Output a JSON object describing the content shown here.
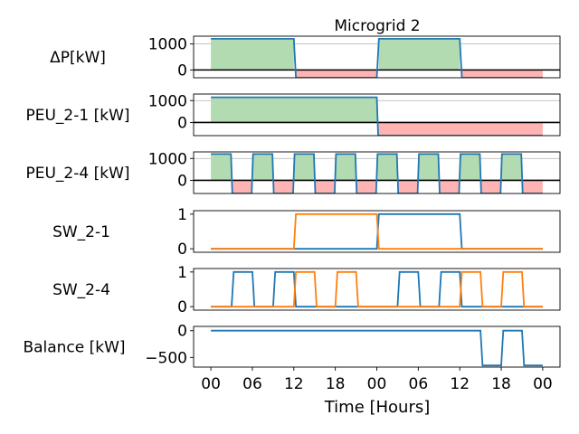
{
  "figure": {
    "title": "Microgrid 2",
    "xlabel": "Time [Hours]"
  },
  "colors": {
    "series_blue": "#1f77b4",
    "series_orange": "#ff7f0e",
    "positive_fill": "#b2dbb2",
    "negative_fill": "#ffb3b3",
    "grid": "#b0b0b0",
    "zero_line": "#000000"
  },
  "chart_data": [
    {
      "type": "line",
      "ylabel": "ΔP[kW]",
      "ylim": [
        -300,
        1300
      ],
      "yticks": [
        0,
        1000
      ],
      "ytick_labels": [
        "0",
        "1000"
      ],
      "grid": true,
      "zero_line": true,
      "fill_sign": true,
      "xlim": [
        -2.5,
        50.5
      ],
      "series": [
        {
          "color": "blue",
          "x": [
            0,
            12,
            12.3,
            24,
            24.3,
            36,
            36.3,
            48
          ],
          "y": [
            1200,
            1200,
            -300,
            -300,
            1200,
            1200,
            -300,
            -300
          ]
        }
      ]
    },
    {
      "type": "line",
      "ylabel": "PEU_2-1 [kW]",
      "ylim": [
        -600,
        1300
      ],
      "yticks": [
        0,
        1000
      ],
      "ytick_labels": [
        "0",
        "1000"
      ],
      "grid": true,
      "zero_line": true,
      "fill_sign": true,
      "xlim": [
        -2.5,
        50.5
      ],
      "series": [
        {
          "color": "blue",
          "x": [
            0,
            24,
            24.2,
            48
          ],
          "y": [
            1150,
            1150,
            -600,
            -600
          ]
        }
      ]
    },
    {
      "type": "line",
      "ylabel": "PEU_2-4 [kW]",
      "ylim": [
        -600,
        1300
      ],
      "yticks": [
        0,
        1000
      ],
      "ytick_labels": [
        "0",
        "1000"
      ],
      "grid": true,
      "zero_line": true,
      "fill_sign": true,
      "xlim": [
        -2.5,
        50.5
      ],
      "series": [
        {
          "color": "blue",
          "x": [
            0,
            2.9,
            3.1,
            5.9,
            6.1,
            8.9,
            9.1,
            11.9,
            12.1,
            14.9,
            15.1,
            17.9,
            18.1,
            20.9,
            21.1,
            23.9,
            24.1,
            26.9,
            27.1,
            29.9,
            30.1,
            32.9,
            33.1,
            35.9,
            36.1,
            38.9,
            39.1,
            41.9,
            42.1,
            44.9,
            45.1,
            48
          ],
          "y": [
            1200,
            1200,
            -600,
            -600,
            1200,
            1200,
            -600,
            -600,
            1200,
            1200,
            -600,
            -600,
            1200,
            1200,
            -600,
            -600,
            1200,
            1200,
            -600,
            -600,
            1200,
            1200,
            -600,
            -600,
            1200,
            1200,
            -600,
            -600,
            1200,
            1200,
            -600,
            -600
          ]
        }
      ]
    },
    {
      "type": "line",
      "ylabel": "SW_2-1",
      "ylim": [
        -0.1,
        1.1
      ],
      "yticks": [
        0,
        1
      ],
      "ytick_labels": [
        "0",
        "1"
      ],
      "grid": false,
      "zero_line": false,
      "fill_sign": false,
      "xlim": [
        -2.5,
        50.5
      ],
      "series": [
        {
          "color": "blue",
          "x": [
            0,
            24,
            24.3,
            36,
            36.3,
            48
          ],
          "y": [
            0,
            0,
            1,
            1,
            0,
            0
          ]
        },
        {
          "color": "orange",
          "x": [
            0,
            12,
            12.3,
            24,
            24.3,
            48
          ],
          "y": [
            0,
            0,
            1,
            1,
            0,
            0
          ]
        }
      ]
    },
    {
      "type": "line",
      "ylabel": "SW_2-4",
      "ylim": [
        -0.1,
        1.1
      ],
      "yticks": [
        0,
        1
      ],
      "ytick_labels": [
        "0",
        "1"
      ],
      "grid": false,
      "zero_line": false,
      "fill_sign": false,
      "xlim": [
        -2.5,
        50.5
      ],
      "series": [
        {
          "color": "blue",
          "x": [
            0,
            3,
            3.3,
            6,
            6.3,
            9,
            9.3,
            12,
            12.3,
            27,
            27.3,
            30,
            30.3,
            33,
            33.3,
            36,
            36.3,
            48
          ],
          "y": [
            0,
            0,
            1,
            1,
            0,
            0,
            1,
            1,
            0,
            0,
            1,
            1,
            0,
            0,
            1,
            1,
            0,
            0
          ]
        },
        {
          "color": "orange",
          "x": [
            0,
            12,
            12.3,
            15,
            15.3,
            18,
            18.3,
            21,
            21.3,
            36,
            36.3,
            39,
            39.3,
            42,
            42.3,
            45,
            45.3,
            48
          ],
          "y": [
            0,
            0,
            1,
            1,
            0,
            0,
            1,
            1,
            0,
            0,
            1,
            1,
            0,
            0,
            1,
            1,
            0,
            0
          ]
        }
      ]
    },
    {
      "type": "line",
      "ylabel": "Balance [kW]",
      "ylim": [
        -680,
        80
      ],
      "yticks": [
        0,
        -500
      ],
      "ytick_labels": [
        "0",
        "−500"
      ],
      "grid": false,
      "zero_line": false,
      "fill_sign": false,
      "xlim": [
        -2.5,
        50.5
      ],
      "xticks": [
        0,
        6,
        12,
        18,
        24,
        30,
        36,
        42,
        48
      ],
      "xtick_labels": [
        "00",
        "06",
        "12",
        "18",
        "00",
        "06",
        "12",
        "18",
        "00"
      ],
      "series": [
        {
          "color": "blue",
          "x": [
            0,
            39,
            39.3,
            42,
            42.3,
            45,
            45.3,
            48
          ],
          "y": [
            0,
            0,
            -650,
            -650,
            0,
            0,
            -650,
            -650
          ]
        }
      ]
    }
  ]
}
